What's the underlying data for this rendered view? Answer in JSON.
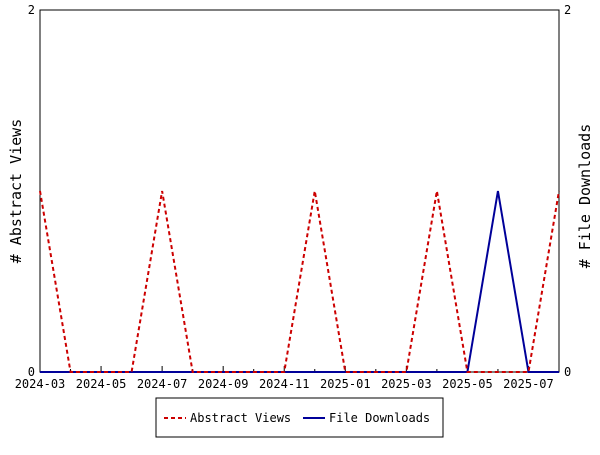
{
  "chart_data": {
    "type": "line",
    "title": "",
    "y_left_label": "# Abstract Views",
    "y_right_label": "# File Downloads",
    "y_left_range": [
      0,
      2
    ],
    "y_right_range": [
      0,
      2
    ],
    "y_left_ticks": [
      "0",
      "2"
    ],
    "y_right_ticks": [
      "0",
      "2"
    ],
    "x_ticks": [
      "2024-03",
      "2024-05",
      "2024-07",
      "2024-09",
      "2024-11",
      "2025-01",
      "2025-03",
      "2025-05",
      "2025-07"
    ],
    "months": [
      "2024-03",
      "2024-04",
      "2024-05",
      "2024-06",
      "2024-07",
      "2024-08",
      "2024-09",
      "2024-10",
      "2024-11",
      "2024-12",
      "2025-01",
      "2025-02",
      "2025-03",
      "2025-04",
      "2025-05",
      "2025-06",
      "2025-07",
      "2025-08"
    ],
    "grid": false,
    "legend_position": "bottom",
    "series": [
      {
        "name": "Abstract Views",
        "color": "#cc0000",
        "dash": true,
        "values": [
          1,
          0,
          0,
          0,
          1,
          0,
          0,
          0,
          0,
          1,
          0,
          0,
          0,
          1,
          0,
          0,
          0,
          1
        ]
      },
      {
        "name": "File Downloads",
        "color": "#000099",
        "dash": false,
        "values": [
          0,
          0,
          0,
          0,
          0,
          0,
          0,
          0,
          0,
          0,
          0,
          0,
          0,
          0,
          0,
          1,
          0,
          0
        ]
      }
    ]
  }
}
